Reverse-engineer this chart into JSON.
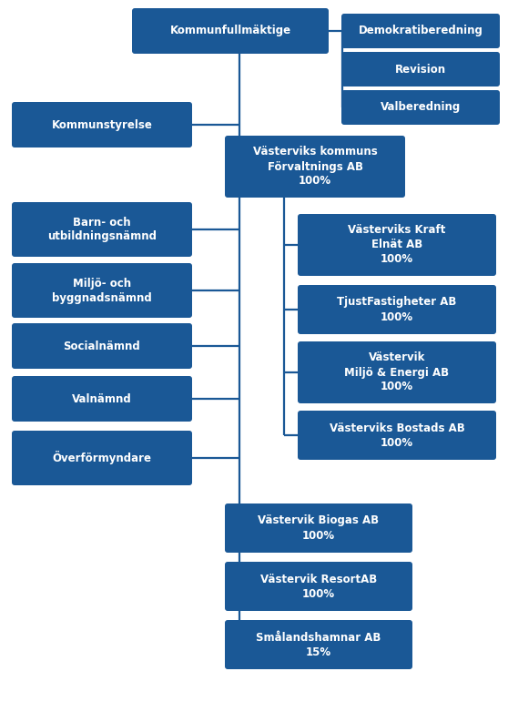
{
  "bg_color": "#ffffff",
  "box_color": "#1a5896",
  "line_color": "#1a5896",
  "text_color": "#ffffff",
  "font_size": 8.5,
  "figw": 5.58,
  "figh": 7.82,
  "boxes": [
    {
      "id": "kf",
      "xp": 148,
      "yp": 12,
      "wp": 210,
      "hp": 44,
      "text": "Kommunfullmäktige"
    },
    {
      "id": "demo",
      "xp": 378,
      "yp": 18,
      "wp": 168,
      "hp": 32,
      "text": "Demokratiberedning"
    },
    {
      "id": "rev",
      "xp": 378,
      "yp": 60,
      "wp": 168,
      "hp": 32,
      "text": "Revision"
    },
    {
      "id": "val1",
      "xp": 378,
      "yp": 102,
      "wp": 168,
      "hp": 32,
      "text": "Valberedning"
    },
    {
      "id": "ks",
      "xp": 16,
      "yp": 115,
      "wp": 192,
      "hp": 44,
      "text": "Kommunstyrelse"
    },
    {
      "id": "vkf",
      "xp": 250,
      "yp": 152,
      "wp": 192,
      "hp": 62,
      "text": "Västerviks kommuns\nFörvaltnings AB\n100%"
    },
    {
      "id": "barn",
      "xp": 16,
      "yp": 225,
      "wp": 192,
      "hp": 54,
      "text": "Barn- och\nutbildningsnämnd"
    },
    {
      "id": "miljo",
      "xp": 16,
      "yp": 292,
      "wp": 192,
      "hp": 54,
      "text": "Miljö- och\nbyggnadsnämnd"
    },
    {
      "id": "soc",
      "xp": 16,
      "yp": 358,
      "wp": 192,
      "hp": 44,
      "text": "Socialnämnd"
    },
    {
      "id": "valn",
      "xp": 16,
      "yp": 416,
      "wp": 192,
      "hp": 44,
      "text": "Valnämnd"
    },
    {
      "id": "ovf",
      "xp": 16,
      "yp": 476,
      "wp": 192,
      "hp": 54,
      "text": "Överförmyndare"
    },
    {
      "id": "kraft",
      "xp": 330,
      "yp": 238,
      "wp": 212,
      "hp": 62,
      "text": "Västerviks Kraft\nElnät AB\n100%"
    },
    {
      "id": "tjust",
      "xp": 330,
      "yp": 316,
      "wp": 212,
      "hp": 48,
      "text": "TjustFastigheter AB\n100%"
    },
    {
      "id": "vme",
      "xp": 330,
      "yp": 378,
      "wp": 212,
      "hp": 62,
      "text": "Västervik\nMiljö & Energi AB\n100%"
    },
    {
      "id": "vbos",
      "xp": 330,
      "yp": 454,
      "wp": 212,
      "hp": 48,
      "text": "Västerviks Bostads AB\n100%"
    },
    {
      "id": "bio",
      "xp": 250,
      "yp": 556,
      "wp": 200,
      "hp": 48,
      "text": "Västervik Biogas AB\n100%"
    },
    {
      "id": "res",
      "xp": 250,
      "yp": 620,
      "wp": 200,
      "hp": 48,
      "text": "Västervik ResortAB\n100%"
    },
    {
      "id": "sma",
      "xp": 250,
      "yp": 684,
      "wp": 200,
      "hp": 48,
      "text": "Smålandshamnar AB\n15%"
    }
  ]
}
